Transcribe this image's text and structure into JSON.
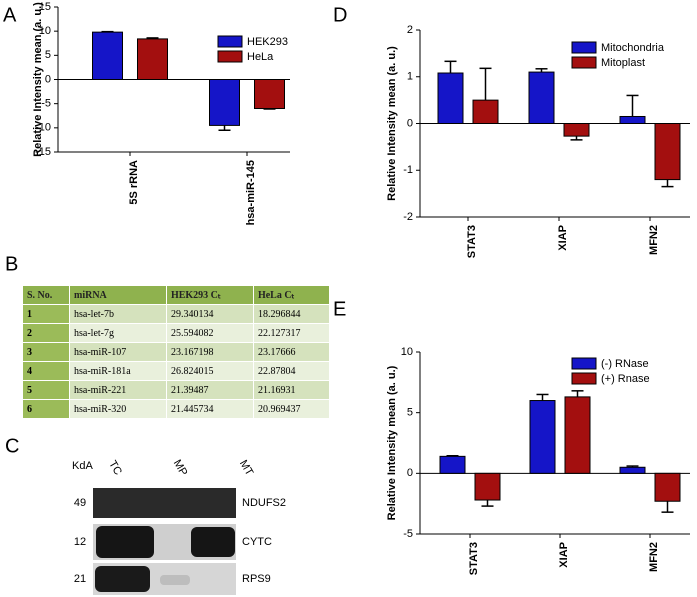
{
  "chart_data": [
    {
      "type": "bar",
      "panel": "A",
      "y_label": "Relative Intensity mean (a. u.)",
      "categories": [
        "5S rRNA",
        "hsa-miR-145"
      ],
      "series": [
        {
          "name": "HEK293",
          "color": "#1515c8",
          "values": [
            9.8,
            -9.5
          ],
          "errors": [
            0.1,
            1.0
          ]
        },
        {
          "name": "HeLa",
          "color": "#a30f0f",
          "values": [
            8.4,
            -6.0
          ],
          "errors": [
            0.2,
            0.1
          ]
        }
      ],
      "ylim": [
        -15,
        15
      ],
      "yticks": [
        -15,
        -10,
        -5,
        0,
        5,
        10,
        15
      ],
      "legend": "upper right"
    },
    {
      "type": "bar",
      "panel": "D",
      "y_label": "Relative Intensity mean (a. u.)",
      "categories": [
        "STAT3",
        "XIAP",
        "MFN2"
      ],
      "series": [
        {
          "name": "Mitochondria",
          "color": "#1515c8",
          "values": [
            1.08,
            1.1,
            0.15
          ],
          "errors": [
            0.25,
            0.07,
            0.45
          ]
        },
        {
          "name": "Mitoplast",
          "color": "#a30f0f",
          "values": [
            0.5,
            -0.27,
            -1.2
          ],
          "errors": [
            0.68,
            0.08,
            0.15
          ]
        }
      ],
      "ylim": [
        -2,
        2
      ],
      "yticks": [
        -2,
        -1,
        0,
        1,
        2
      ],
      "legend": "upper right"
    },
    {
      "type": "bar",
      "panel": "E",
      "y_label": "Relative Intensity mean (a. u.)",
      "categories": [
        "STAT3",
        "XIAP",
        "MFN2"
      ],
      "series": [
        {
          "name": "(-) RNase",
          "color": "#1515c8",
          "values": [
            1.4,
            6.0,
            0.5
          ],
          "errors": [
            0.05,
            0.5,
            0.1
          ]
        },
        {
          "name": "(+) Rnase",
          "color": "#a30f0f",
          "values": [
            -2.2,
            6.3,
            -2.3
          ],
          "errors": [
            0.5,
            0.5,
            0.9
          ]
        }
      ],
      "ylim": [
        -5,
        10
      ],
      "yticks": [
        -5,
        0,
        5,
        10
      ],
      "legend": "upper right"
    }
  ],
  "table": {
    "panel": "B",
    "header": [
      "S. No.",
      "miRNA",
      "HEK293 Cₜ",
      "HeLa Cₜ"
    ],
    "rows": [
      [
        "1",
        "hsa-let-7b",
        "29.340134",
        "18.296844"
      ],
      [
        "2",
        "hsa-let-7g",
        "25.594082",
        "22.127317"
      ],
      [
        "3",
        "hsa-miR-107",
        "23.167198",
        "23.17666"
      ],
      [
        "4",
        "hsa-miR-181a",
        "26.824015",
        "22.87804"
      ],
      [
        "5",
        "hsa-miR-221",
        "21.39487",
        "21.16931"
      ],
      [
        "6",
        "hsa-miR-320",
        "21.445734",
        "20.969437"
      ]
    ]
  },
  "blot": {
    "panel": "C",
    "unit": "KdA",
    "lanes": [
      "TC",
      "MP",
      "MT"
    ],
    "markers": [
      49,
      12,
      21
    ],
    "proteins": [
      "NDUFS2",
      "CYTC",
      "RPS9"
    ]
  }
}
